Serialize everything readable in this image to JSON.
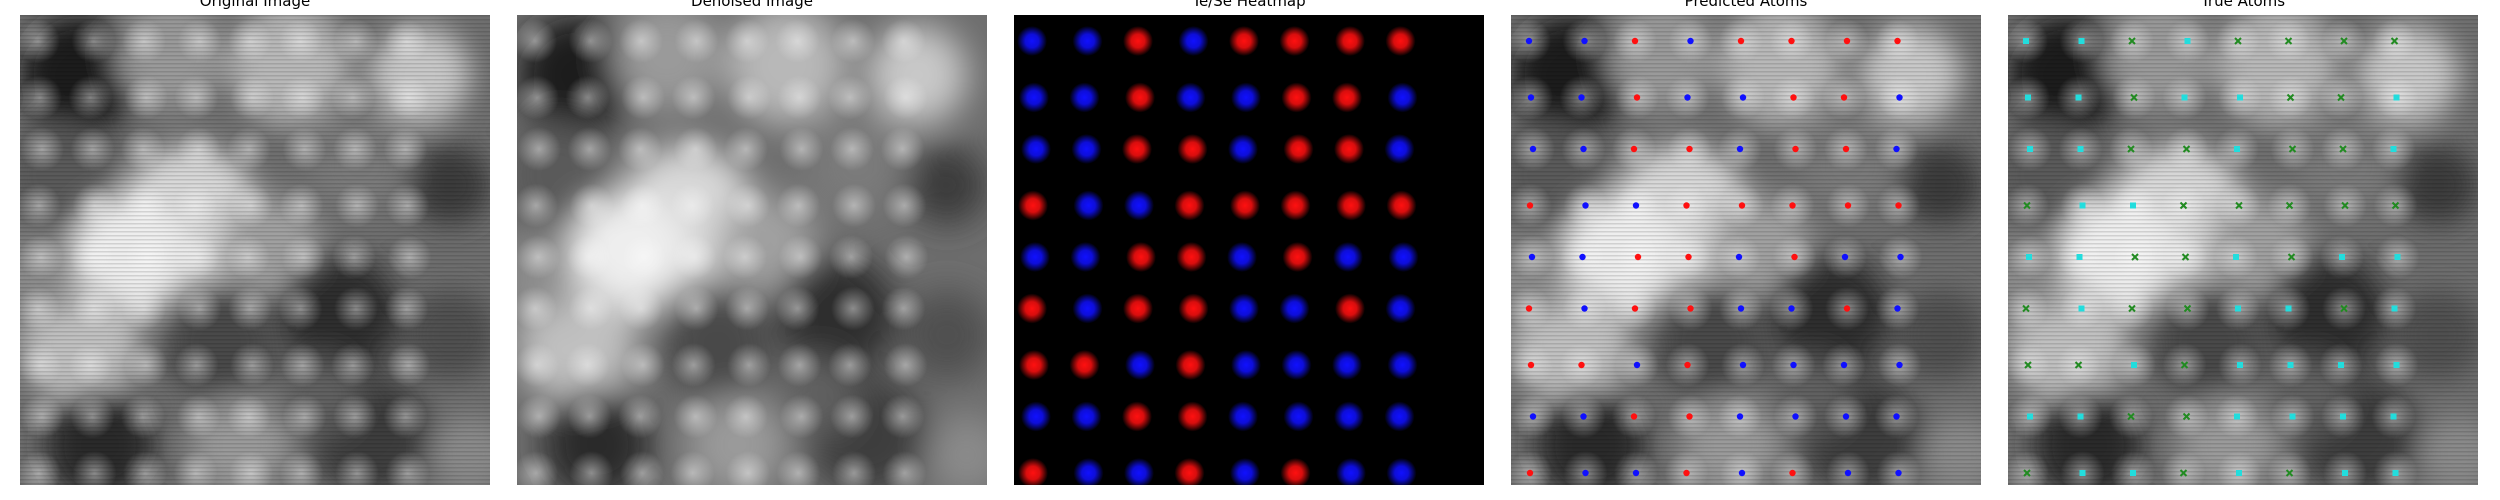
{
  "panels": [
    {
      "title": "Original Image"
    },
    {
      "title": "Denoised Image"
    },
    {
      "title": "Te/Se Heatmap"
    },
    {
      "title": "Predicted Atoms"
    },
    {
      "title": "True Atoms"
    }
  ],
  "colors": {
    "te": "#ff1010",
    "se": "#1010ff",
    "true_te": "#22dddd",
    "true_se": "#228b22",
    "background_heatmap": "#000000"
  },
  "lattice": {
    "rows": [
      "BBRBRRRR",
      "BBRBBRRB",
      "BBRRBRRB",
      "RBBRRRRR",
      "BBRRBRBB",
      "RBRRBBRB",
      "RRBRBBBB",
      "BBRRBBBB",
      "RBBRBRBB"
    ],
    "true_rows": [
      "CCGCGGGG",
      "CCGCCGGC",
      "CCGGCGGC",
      "GCCGGGGG",
      "CCGGCGCC",
      "GCGGCCGC",
      "GGCGCCCC",
      "CCGGCCCC",
      "GCCGCGCC"
    ]
  }
}
